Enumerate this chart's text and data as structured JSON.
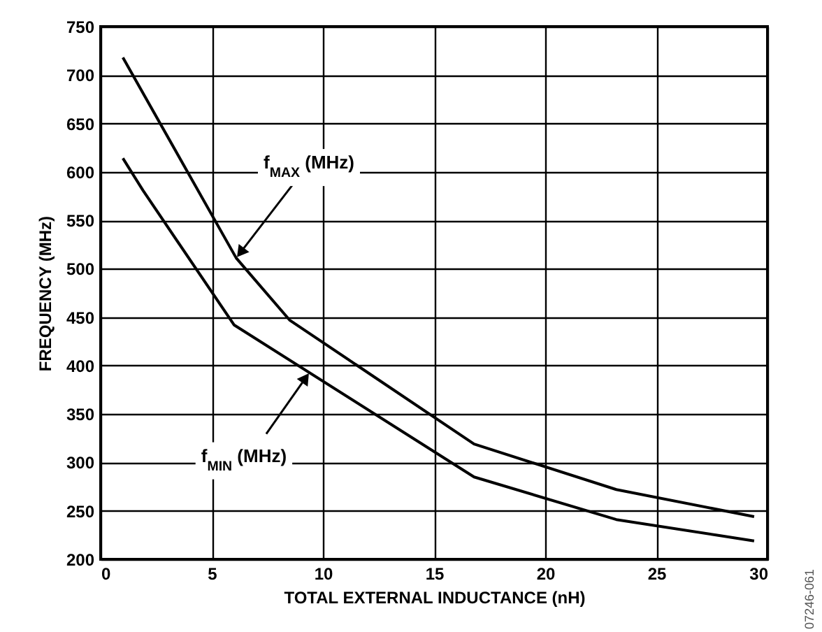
{
  "chart_data": {
    "type": "line",
    "xlabel": "TOTAL EXTERNAL INDUCTANCE (nH)",
    "ylabel": "FREQUENCY (MHz)",
    "xlim": [
      0,
      30
    ],
    "ylim": [
      200,
      750
    ],
    "xticks": [
      0,
      5,
      10,
      15,
      20,
      25,
      30
    ],
    "yticks": [
      200,
      250,
      300,
      350,
      400,
      450,
      500,
      550,
      600,
      650,
      700,
      750
    ],
    "grid": true,
    "marker": "none",
    "line_style": "solid",
    "series": [
      {
        "color": "#000000",
        "x": [
          1,
          6.1,
          8.5,
          16.8,
          23.2,
          29.4
        ],
        "values": [
          718,
          511,
          447,
          319,
          272,
          244
        ]
      },
      {
        "color": "#000000",
        "x": [
          1,
          1.9,
          6,
          16.8,
          23.2,
          29.4
        ],
        "values": [
          614,
          581,
          442,
          285,
          241,
          219
        ]
      }
    ],
    "annotations": [
      {
        "text": "f$_{MAX}$ (MHz)",
        "x": 6.1,
        "y": 511
      },
      {
        "text": "f$_{MIN}$ (MHz)",
        "x": 9.4,
        "y": 393
      },
      "07246-061"
    ]
  }
}
